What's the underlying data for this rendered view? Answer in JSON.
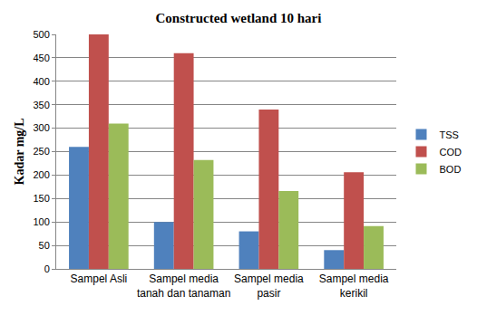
{
  "chart_data": {
    "type": "bar",
    "title": "Constructed wetland 10 hari",
    "y_label": "Kadar mg/L",
    "categories": [
      "Sampel Asli",
      "Sampel media tanah dan tanaman",
      "Sampel media pasir",
      "Sampel media kerikil"
    ],
    "series": [
      {
        "name": "TSS",
        "color": "#4f81bd",
        "values": [
          260,
          100,
          80,
          40
        ]
      },
      {
        "name": "COD",
        "color": "#c0504d",
        "values": [
          500,
          460,
          340,
          206
        ]
      },
      {
        "name": "BOD",
        "color": "#9bbb59",
        "values": [
          310,
          232,
          166,
          91
        ]
      }
    ],
    "ylim": [
      0,
      500
    ],
    "yticks": [
      0,
      50,
      100,
      150,
      200,
      250,
      300,
      350,
      400,
      450,
      500
    ],
    "grid": true,
    "legend": "right"
  }
}
